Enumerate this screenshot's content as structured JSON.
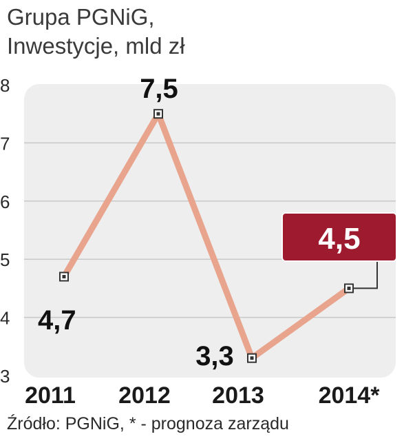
{
  "title_line1": "Grupa PGNiG,",
  "title_line2": "Inwestycje, mld zł",
  "source": "Źródło: PGNiG, * - prognoza zarządu",
  "colors": {
    "line": "#e8a48d",
    "highlight_box": "#9e1b2f",
    "plot_bg": "#eeeeee",
    "grid": "#c8c8c8"
  },
  "chart_data": {
    "type": "line",
    "title": "Grupa PGNiG, Inwestycje, mld zł",
    "categories": [
      "2011",
      "2012",
      "2013",
      "2014*"
    ],
    "values": [
      4.7,
      7.5,
      3.3,
      4.5
    ],
    "value_labels": [
      "4,7",
      "7,5",
      "3,3",
      "4,5"
    ],
    "y_ticks": [
      "3",
      "4",
      "5",
      "6",
      "7",
      "8"
    ],
    "ylim": [
      3,
      8
    ],
    "grid": true,
    "highlight_index": 3
  }
}
